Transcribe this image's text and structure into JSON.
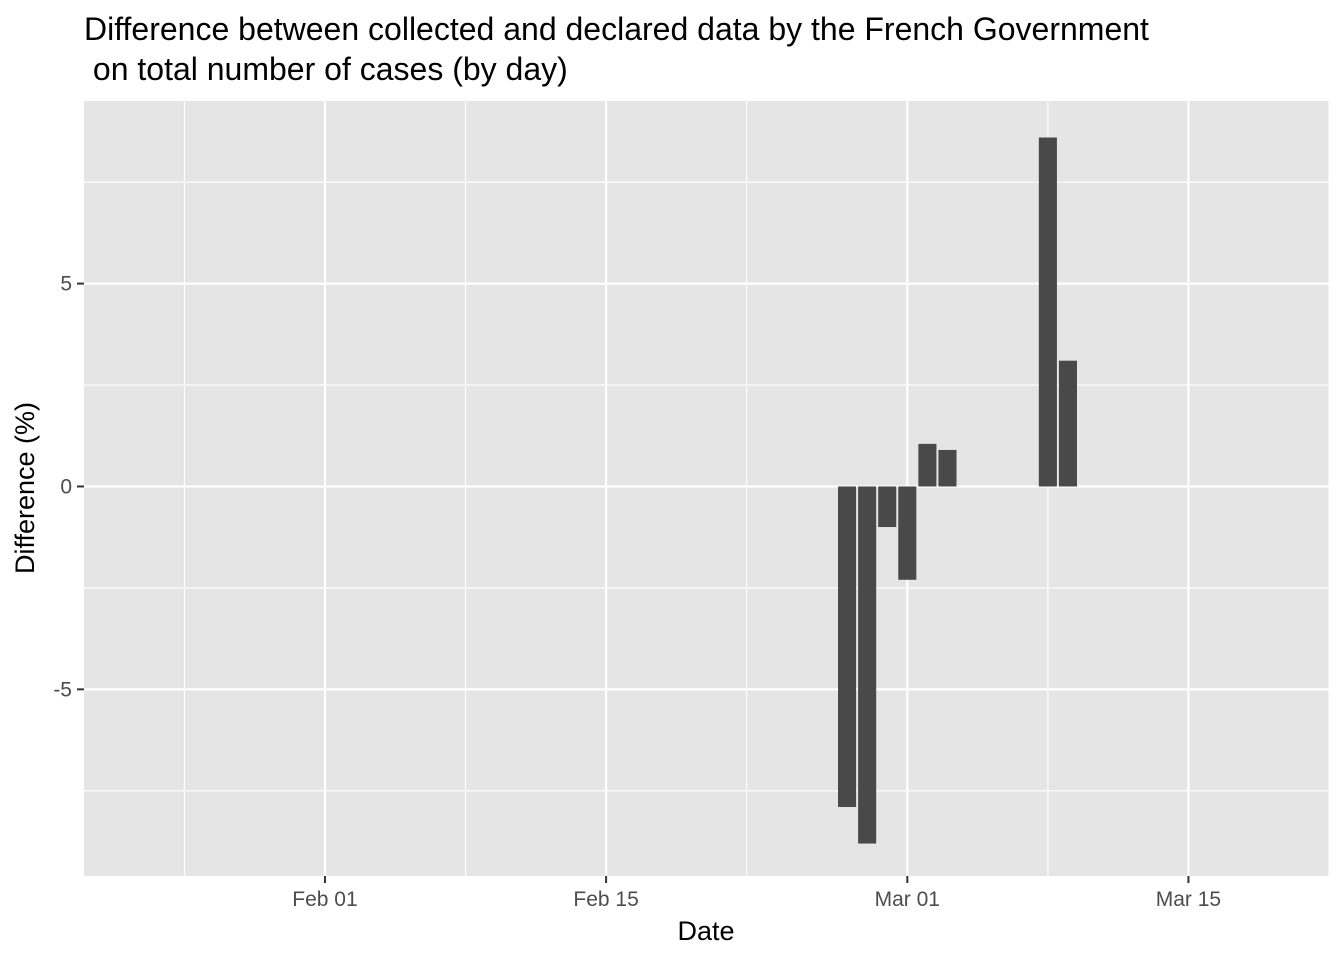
{
  "chart_data": {
    "type": "bar",
    "title_lines": [
      "Difference between collected and declared data by the French Government",
      " on total number of cases (by day)"
    ],
    "xlabel": "Date",
    "ylabel": "Difference (%)",
    "x_axis": {
      "type": "date",
      "range": [
        "2020-01-20",
        "2020-03-22"
      ],
      "ticks": [
        {
          "date": "2020-02-01",
          "label": "Feb 01"
        },
        {
          "date": "2020-02-15",
          "label": "Feb 15"
        },
        {
          "date": "2020-03-01",
          "label": "Mar 01"
        },
        {
          "date": "2020-03-15",
          "label": "Mar 15"
        }
      ],
      "minor_ticks": [
        "2020-01-25",
        "2020-02-08",
        "2020-02-22",
        "2020-03-08",
        "2020-03-22"
      ]
    },
    "y_axis": {
      "range": [
        -9.6,
        9.5
      ],
      "ticks": [
        {
          "value": -5,
          "label": "-5"
        },
        {
          "value": 0,
          "label": "0"
        },
        {
          "value": 5,
          "label": "5"
        }
      ],
      "minor_ticks": [
        -7.5,
        -2.5,
        2.5,
        7.5
      ]
    },
    "grid": true,
    "points": [
      {
        "x": "2020-02-27",
        "y": -7.9
      },
      {
        "x": "2020-02-28",
        "y": -8.8
      },
      {
        "x": "2020-02-29",
        "y": -1.0
      },
      {
        "x": "2020-03-01",
        "y": -2.3
      },
      {
        "x": "2020-03-02",
        "y": 1.05
      },
      {
        "x": "2020-03-03",
        "y": 0.9
      },
      {
        "x": "2020-03-08",
        "y": 8.6
      },
      {
        "x": "2020-03-09",
        "y": 3.1
      }
    ],
    "colors": {
      "panel_background": "#e5e5e5",
      "grid_line": "#ffffff",
      "bar_fill": "#494949",
      "tick_text": "#4d4d4d",
      "axis_tick": "#333333",
      "text": "#000000"
    }
  }
}
